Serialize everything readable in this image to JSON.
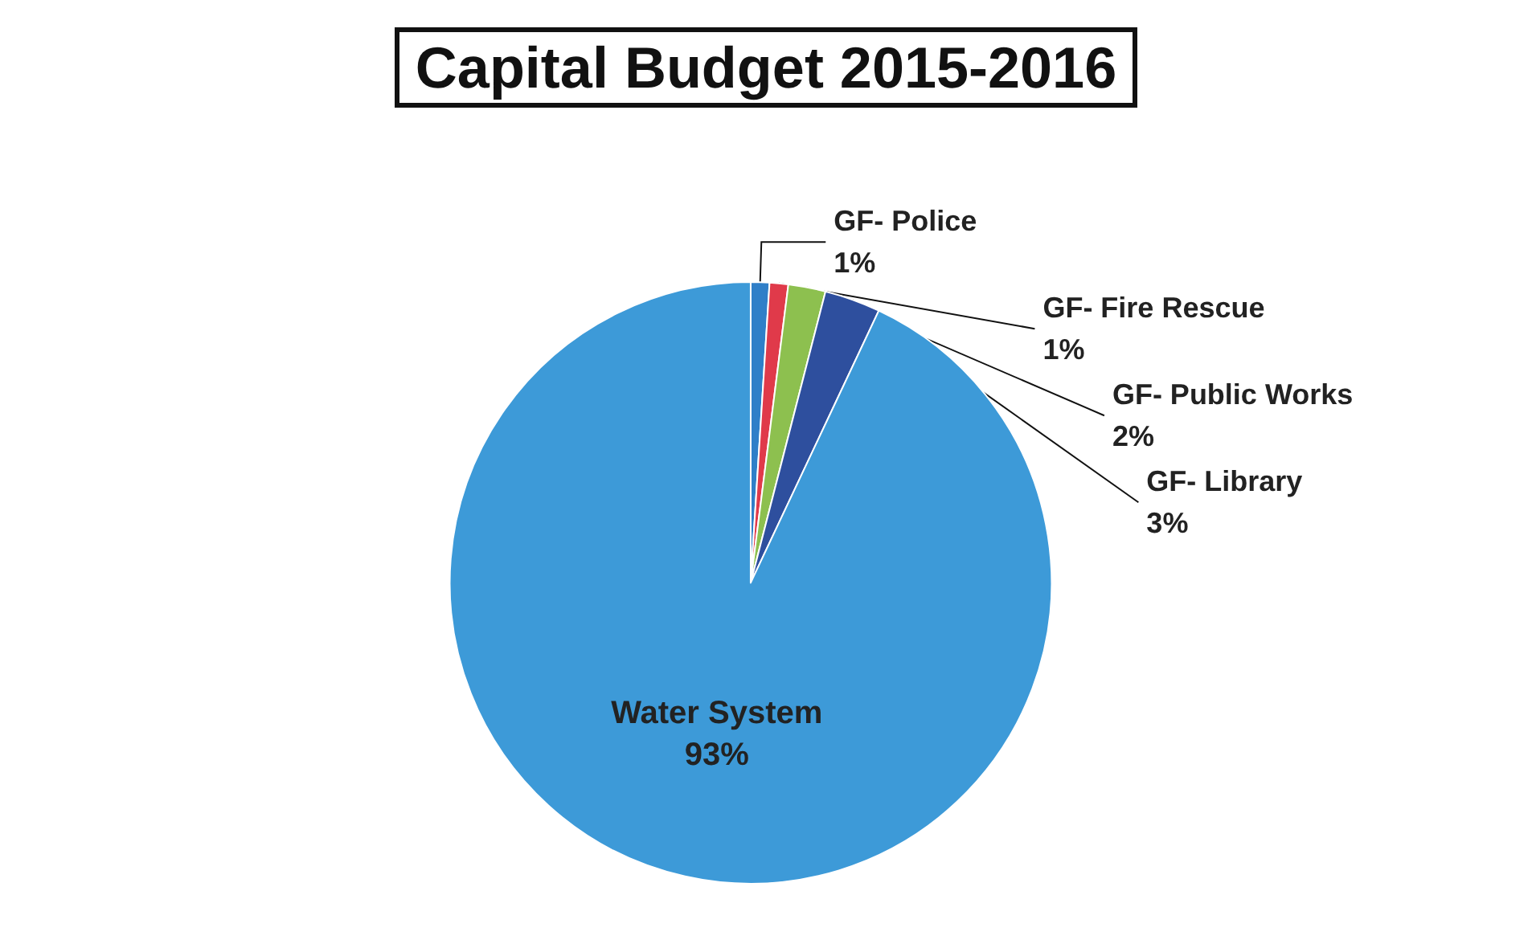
{
  "chart_data": {
    "type": "pie",
    "title": "Capital Budget 2015-2016",
    "categories": [
      "GF- Police",
      "GF- Fire Rescue",
      "GF- Public Works",
      "GF- Library",
      "Water System"
    ],
    "values": [
      1,
      1,
      2,
      3,
      93
    ],
    "colors": [
      "#2f7fc8",
      "#e03a4a",
      "#8dc04f",
      "#2e4f9e",
      "#3d9ad8"
    ],
    "value_labels": [
      "1%",
      "1%",
      "2%",
      "3%",
      "93%"
    ],
    "legend": false
  }
}
